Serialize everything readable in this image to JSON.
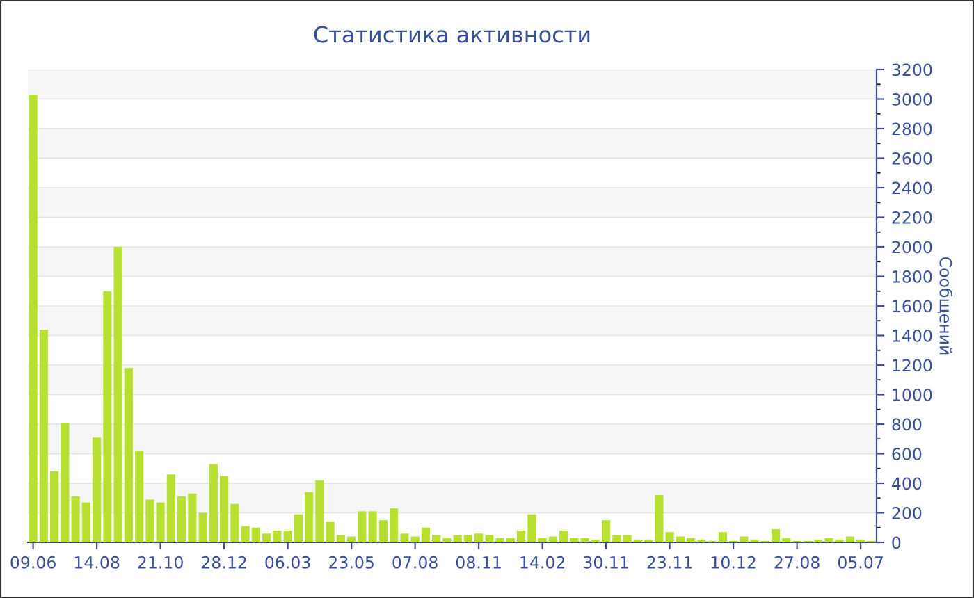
{
  "chart_data": {
    "type": "bar",
    "title": "Статистика активности",
    "ylabel": "Сообщений",
    "categories": [
      "09.06",
      null,
      null,
      null,
      null,
      null,
      "14.08",
      null,
      null,
      null,
      null,
      null,
      "21.10",
      null,
      null,
      null,
      null,
      null,
      "28.12",
      null,
      null,
      null,
      null,
      null,
      "06.03",
      null,
      null,
      null,
      null,
      null,
      "23.05",
      null,
      null,
      null,
      null,
      null,
      "07.08",
      null,
      null,
      null,
      null,
      null,
      "08.11",
      null,
      null,
      null,
      null,
      null,
      "14.02",
      null,
      null,
      null,
      null,
      null,
      "30.11",
      null,
      null,
      null,
      null,
      null,
      "23.11",
      null,
      null,
      null,
      null,
      null,
      "10.12",
      null,
      null,
      null,
      null,
      null,
      "27.08",
      null,
      null,
      null,
      null,
      null,
      "05.07",
      null
    ],
    "values": [
      3030,
      1440,
      480,
      810,
      310,
      270,
      710,
      1700,
      2000,
      1180,
      620,
      290,
      270,
      460,
      310,
      330,
      200,
      530,
      450,
      260,
      110,
      100,
      60,
      80,
      80,
      190,
      340,
      420,
      140,
      50,
      40,
      210,
      210,
      150,
      230,
      60,
      40,
      100,
      50,
      30,
      50,
      50,
      60,
      50,
      30,
      30,
      80,
      190,
      30,
      40,
      80,
      30,
      30,
      20,
      150,
      50,
      50,
      20,
      20,
      320,
      70,
      40,
      30,
      20,
      10,
      70,
      10,
      40,
      20,
      10,
      90,
      30,
      10,
      10,
      20,
      30,
      20,
      40,
      20,
      10
    ],
    "color": "#b8e030",
    "ylim": [
      0,
      3200
    ],
    "yticks": [
      0,
      200,
      400,
      600,
      800,
      1000,
      1200,
      1400,
      1600,
      1800,
      2000,
      2200,
      2400,
      2600,
      2800,
      3000,
      3200
    ],
    "grid": "y"
  }
}
